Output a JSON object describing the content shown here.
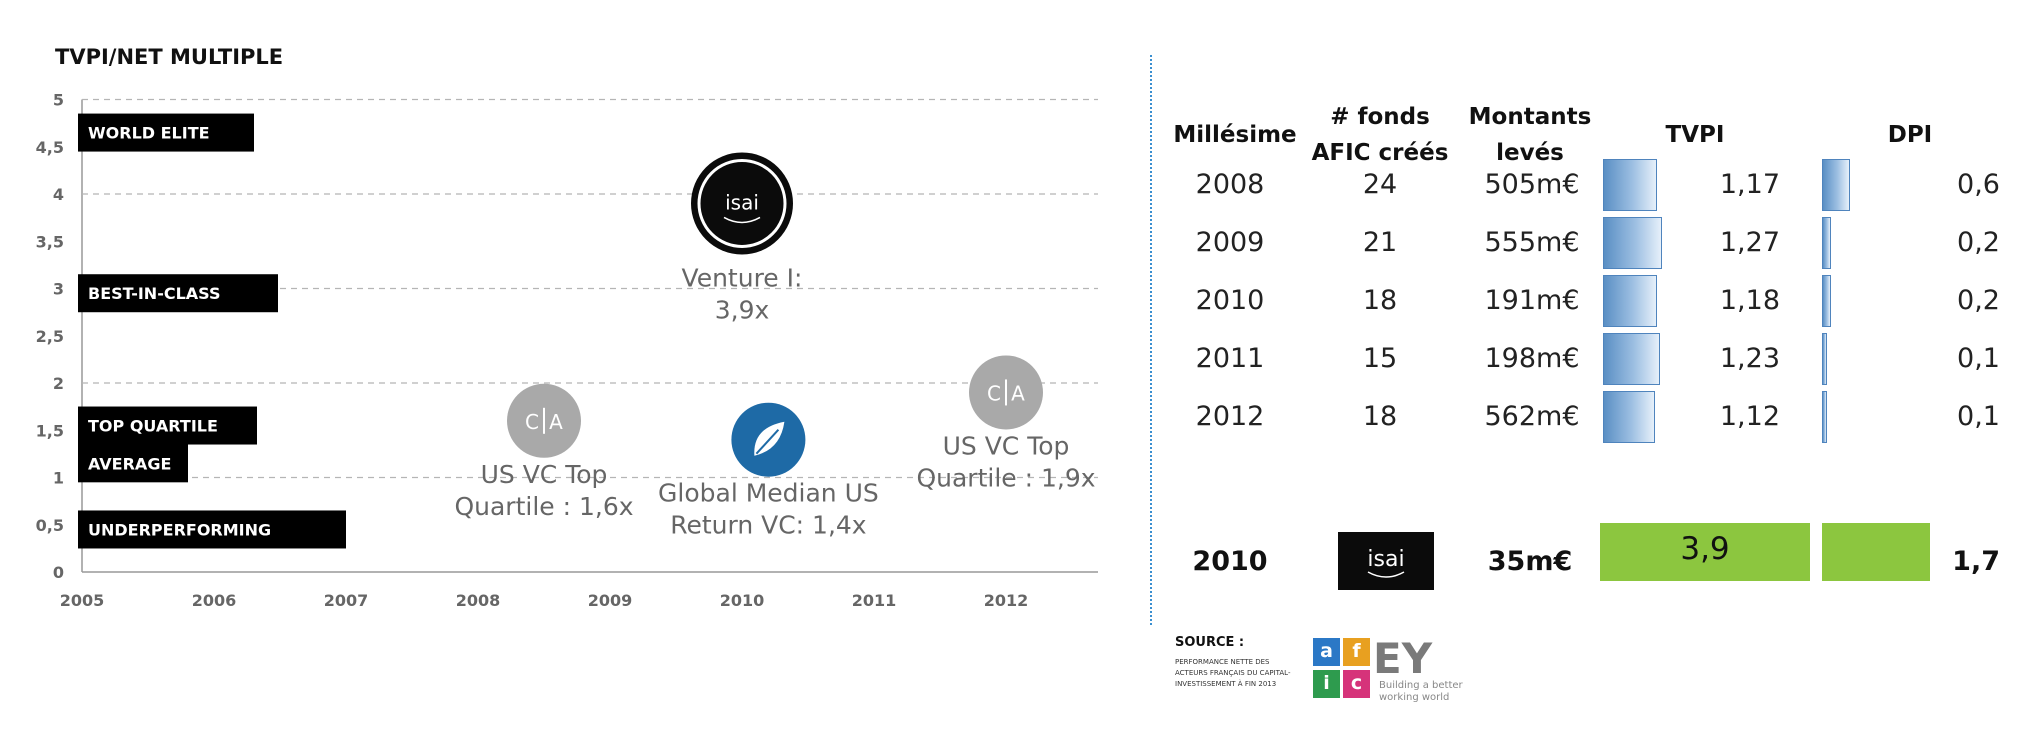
{
  "chart_data": [
    {
      "type": "scatter",
      "title": "TVPI/NET MULTIPLE",
      "x_ticks": [
        "2005",
        "2006",
        "2007",
        "2008",
        "2009",
        "2010",
        "2011",
        "2012"
      ],
      "y_ticks": [
        "0",
        "0,5",
        "1",
        "1,5",
        "2",
        "2,5",
        "3",
        "3,5",
        "4",
        "4,5",
        "5"
      ],
      "xlim": [
        2005,
        2012.7
      ],
      "ylim": [
        0,
        5
      ],
      "grid": "dashed horizontal at 1, 2, 3, 4, 5",
      "bands": [
        {
          "label": "WORLD ELITE",
          "y": 4.65
        },
        {
          "label": "BEST-IN-CLASS",
          "y": 2.95
        },
        {
          "label": "TOP QUARTILE",
          "y": 1.55
        },
        {
          "label": "AVERAGE",
          "y": 1.15
        },
        {
          "label": "UNDERPERFORMING",
          "y": 0.45
        }
      ],
      "points": [
        {
          "x": 2010,
          "y": 3.9,
          "logo": "isai-logo",
          "label_lines": [
            "Venture I:",
            "3,9x"
          ]
        },
        {
          "x": 2008.5,
          "y": 1.6,
          "logo": "ca-logo",
          "label_lines": [
            "US VC Top",
            "Quartile : 1,6x"
          ]
        },
        {
          "x": 2010.2,
          "y": 1.4,
          "logo": "leaf-logo",
          "label_lines": [
            "Global Median US",
            "Return VC: 1,4x"
          ]
        },
        {
          "x": 2012,
          "y": 1.9,
          "logo": "ca-logo",
          "label_lines": [
            "US VC Top",
            "Quartile : 1,9x"
          ]
        }
      ]
    },
    {
      "type": "table",
      "columns": [
        "Millésime",
        "# fonds AFIC créés",
        "Montants levés",
        "TVPI",
        "DPI"
      ],
      "header_lines": {
        "millesime": [
          "Millésime"
        ],
        "fonds": [
          "# fonds",
          "AFIC créés"
        ],
        "montants": [
          "Montants",
          "levés"
        ],
        "tvpi": [
          "TVPI"
        ],
        "dpi": [
          "DPI"
        ]
      },
      "rows": [
        {
          "year": "2008",
          "fonds": "24",
          "montants": "505m€",
          "tvpi": "1,17",
          "dpi": "0,6",
          "tvpi_value": 1.17,
          "dpi_value": 0.6
        },
        {
          "year": "2009",
          "fonds": "21",
          "montants": "555m€",
          "tvpi": "1,27",
          "dpi": "0,2",
          "tvpi_value": 1.27,
          "dpi_value": 0.2
        },
        {
          "year": "2010",
          "fonds": "18",
          "montants": "191m€",
          "tvpi": "1,18",
          "dpi": "0,2",
          "tvpi_value": 1.18,
          "dpi_value": 0.2
        },
        {
          "year": "2011",
          "fonds": "15",
          "montants": "198m€",
          "tvpi": "1,23",
          "dpi": "0,1",
          "tvpi_value": 1.23,
          "dpi_value": 0.1
        },
        {
          "year": "2012",
          "fonds": "18",
          "montants": "562m€",
          "tvpi": "1,12",
          "dpi": "0,1",
          "tvpi_value": 1.12,
          "dpi_value": 0.1
        }
      ],
      "summary": {
        "year": "2010",
        "fund_logo": "isai-logo",
        "montants": "35m€",
        "tvpi": "3,9",
        "dpi": "1,7",
        "tvpi_value": 3.9,
        "dpi_value": 1.7
      }
    }
  ],
  "logos": {
    "isai_text": "isai",
    "ca_left": "C",
    "ca_right": "A"
  },
  "source": {
    "title": "SOURCE :",
    "note": "Performance nette des acteurs français du capital-investissement à fin 2013",
    "afic_letters": [
      "a",
      "f",
      "i",
      "c"
    ],
    "afic_colors": [
      "#2b78c6",
      "#e8a020",
      "#2e9b4e",
      "#d6337a"
    ],
    "ey_logo": "EY",
    "ey_tagline": "Building a better working world"
  },
  "colors": {
    "band": "#000000",
    "table_bar": "#5a8fc4",
    "summary_green": "#8cc63f",
    "leaf_logo": "#1e6aa6",
    "ca_logo": "#a9a9a9",
    "divider": "#3a8fd0"
  }
}
